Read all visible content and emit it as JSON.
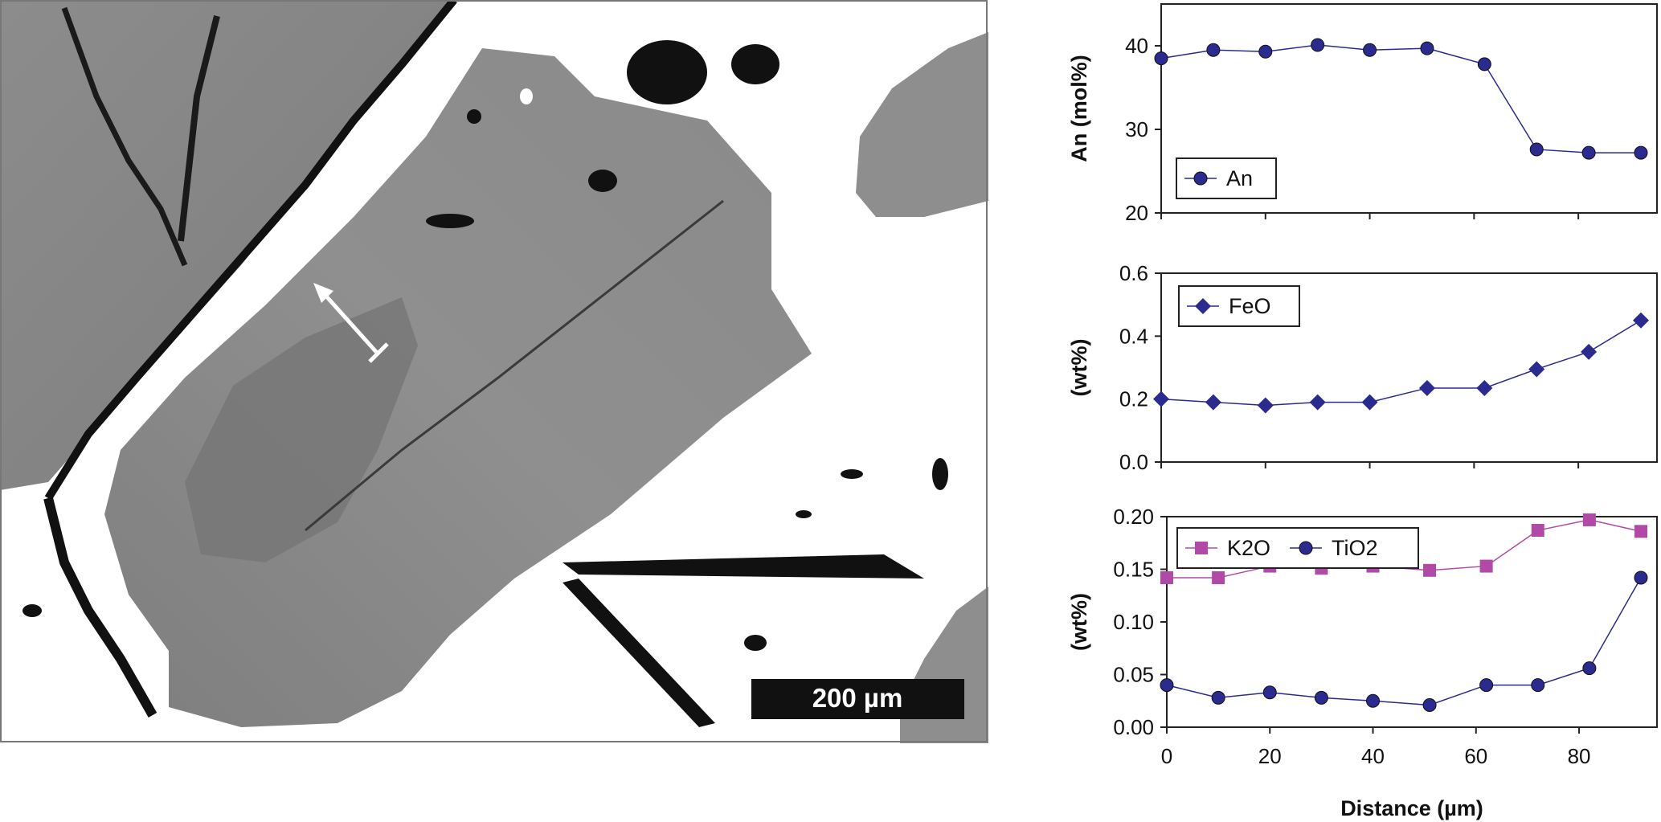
{
  "image": {
    "scale_bar_label": "200 µm"
  },
  "colors": {
    "an": "#2b2b8f",
    "feo": "#2b2b8f",
    "k2o": "#b04aa6",
    "tio2": "#2b2b8f"
  },
  "chart_data": [
    {
      "type": "line",
      "ylabel": "An (mol%)",
      "ylim": [
        20,
        45
      ],
      "yticks": [
        20,
        30,
        40
      ],
      "xlim": [
        0,
        92
      ],
      "legend_position": "bottom-left",
      "series": [
        {
          "name": "An",
          "marker": "circle",
          "x": [
            0,
            10,
            20,
            30,
            40,
            51,
            62,
            72,
            82,
            92
          ],
          "values": [
            38.5,
            39.5,
            39.3,
            40.1,
            39.5,
            39.7,
            37.8,
            27.6,
            27.2,
            27.2
          ]
        }
      ]
    },
    {
      "type": "line",
      "ylabel": "(wt%)",
      "ylim": [
        0,
        0.6
      ],
      "yticks": [
        "0.0",
        "0.2",
        "0.4",
        "0.6"
      ],
      "xlim": [
        0,
        92
      ],
      "legend_position": "top-left",
      "series": [
        {
          "name": "FeO",
          "marker": "diamond",
          "x": [
            0,
            10,
            20,
            30,
            40,
            51,
            62,
            72,
            82,
            92
          ],
          "values": [
            0.2,
            0.19,
            0.18,
            0.19,
            0.19,
            0.235,
            0.235,
            0.295,
            0.35,
            0.45
          ]
        }
      ]
    },
    {
      "type": "line",
      "ylabel": "(wt%)",
      "xlabel": "Distance (µm)",
      "ylim": [
        0,
        0.2
      ],
      "yticks": [
        "0.00",
        "0.05",
        "0.10",
        "0.15",
        "0.20"
      ],
      "xticks": [
        0,
        20,
        40,
        60,
        80
      ],
      "xlim": [
        0,
        92
      ],
      "legend_position": "top-left",
      "series": [
        {
          "name": "K2O",
          "marker": "square",
          "x": [
            0,
            10,
            20,
            30,
            40,
            51,
            62,
            72,
            82,
            92
          ],
          "values": [
            0.142,
            0.142,
            0.153,
            0.151,
            0.153,
            0.149,
            0.153,
            0.187,
            0.197,
            0.186
          ]
        },
        {
          "name": "TiO2",
          "marker": "circle",
          "x": [
            0,
            10,
            20,
            30,
            40,
            51,
            62,
            72,
            82,
            92
          ],
          "values": [
            0.04,
            0.028,
            0.033,
            0.028,
            0.025,
            0.021,
            0.04,
            0.04,
            0.056,
            0.142
          ]
        }
      ]
    }
  ]
}
